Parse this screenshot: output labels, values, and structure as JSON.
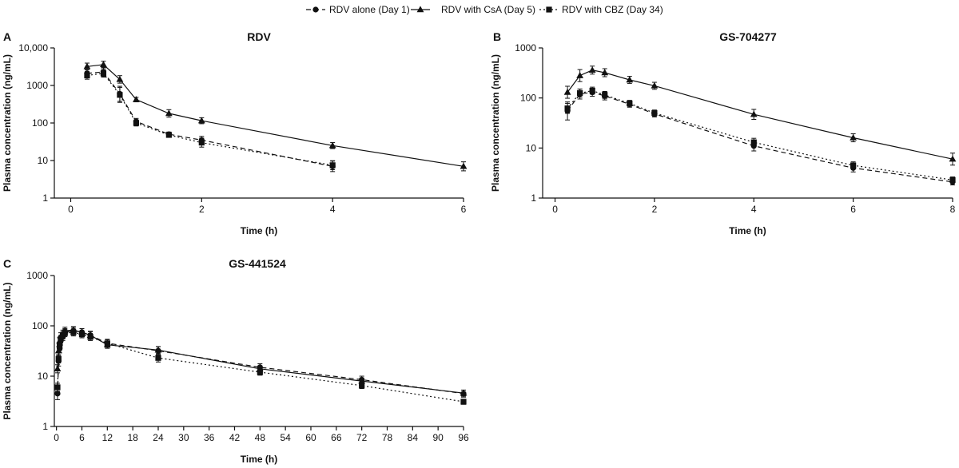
{
  "legend": [
    {
      "series": "alone",
      "label": "RDV alone (Day 1)",
      "dash": "6,4",
      "marker": "circle"
    },
    {
      "series": "csa",
      "label": "RDV with CsA (Day 5)",
      "dash": "",
      "marker": "triangle"
    },
    {
      "series": "cbz",
      "label": "RDV with CBZ (Day 34)",
      "dash": "2,3",
      "marker": "square"
    }
  ],
  "chart_data": [
    {
      "type": "line",
      "letter": "A",
      "title": "RDV",
      "xlabel": "Time (h)",
      "ylabel": "Plasma concentration (ng/mL)",
      "yscale": "log",
      "xlim": [
        -0.25,
        6
      ],
      "ylim": [
        1,
        10000
      ],
      "xticks": [
        0,
        2,
        4,
        6
      ],
      "xtick_labels": [
        "0",
        "2",
        "4",
        "6"
      ],
      "yticks": [
        1,
        10,
        100,
        1000,
        10000
      ],
      "ytick_labels": [
        "1",
        "10",
        "100",
        "1000",
        "10,000"
      ],
      "series": [
        {
          "key": "alone",
          "x": [
            0.25,
            0.5,
            0.75,
            1,
            1.5,
            2,
            4
          ],
          "y": [
            2100,
            2300,
            600,
            110,
            50,
            35,
            7
          ],
          "err": [
            0.12,
            0.12,
            0.2,
            0.08,
            0.06,
            0.1,
            0.14
          ]
        },
        {
          "key": "csa",
          "x": [
            0.25,
            0.5,
            0.75,
            1,
            1.5,
            2,
            4,
            6
          ],
          "y": [
            3200,
            3600,
            1450,
            420,
            180,
            115,
            25,
            7
          ],
          "err": [
            0.09,
            0.09,
            0.1,
            0.06,
            0.1,
            0.08,
            0.08,
            0.12
          ]
        },
        {
          "key": "cbz",
          "x": [
            0.25,
            0.5,
            0.75,
            1,
            1.5,
            2,
            4
          ],
          "y": [
            1850,
            2100,
            560,
            100,
            48,
            30,
            7.5
          ],
          "err": [
            0.1,
            0.1,
            0.2,
            0.08,
            0.06,
            0.12,
            0.12
          ]
        }
      ]
    },
    {
      "type": "line",
      "letter": "B",
      "title": "GS-704277",
      "xlabel": "Time (h)",
      "ylabel": "Plasma concentration (ng/mL)",
      "yscale": "log",
      "xlim": [
        -0.25,
        8
      ],
      "ylim": [
        1,
        1000
      ],
      "xticks": [
        0,
        2,
        4,
        6,
        8
      ],
      "xtick_labels": [
        "0",
        "2",
        "4",
        "6",
        "8"
      ],
      "yticks": [
        1,
        10,
        100,
        1000
      ],
      "ytick_labels": [
        "1",
        "10",
        "100",
        "1000"
      ],
      "series": [
        {
          "key": "alone",
          "x": [
            0.25,
            0.5,
            0.75,
            1,
            1.5,
            2,
            4,
            6,
            8
          ],
          "y": [
            55,
            120,
            130,
            110,
            75,
            48,
            11,
            4,
            2.1
          ],
          "err": [
            0.18,
            0.1,
            0.08,
            0.08,
            0.06,
            0.06,
            0.1,
            0.08,
            0.06
          ]
        },
        {
          "key": "csa",
          "x": [
            0.25,
            0.5,
            0.75,
            1,
            1.5,
            2,
            4,
            6,
            8
          ],
          "y": [
            130,
            280,
            360,
            320,
            230,
            175,
            47,
            16,
            6
          ],
          "err": [
            0.12,
            0.12,
            0.08,
            0.08,
            0.07,
            0.07,
            0.1,
            0.08,
            0.12
          ]
        },
        {
          "key": "cbz",
          "x": [
            0.25,
            0.5,
            0.75,
            1,
            1.5,
            2,
            4,
            6,
            8
          ],
          "y": [
            62,
            125,
            140,
            115,
            78,
            50,
            13,
            4.5,
            2.3
          ],
          "err": [
            0.1,
            0.08,
            0.07,
            0.07,
            0.06,
            0.06,
            0.08,
            0.07,
            0.06
          ]
        }
      ]
    },
    {
      "type": "line",
      "letter": "C",
      "title": "GS-441524",
      "xlabel": "Time (h)",
      "ylabel": "Plasma concentration (ng/mL)",
      "yscale": "log",
      "xlim": [
        -0.5,
        96
      ],
      "ylim": [
        1,
        1000
      ],
      "xticks": [
        0,
        6,
        12,
        18,
        24,
        30,
        36,
        42,
        48,
        54,
        60,
        66,
        72,
        78,
        84,
        90,
        96
      ],
      "xtick_labels": [
        "0",
        "6",
        "12",
        "18",
        "24",
        "30",
        "36",
        "42",
        "48",
        "54",
        "60",
        "66",
        "72",
        "78",
        "84",
        "90",
        "96"
      ],
      "yticks": [
        1,
        10,
        100,
        1000
      ],
      "ytick_labels": [
        "1",
        "10",
        "100",
        "1000"
      ],
      "series": [
        {
          "key": "alone",
          "x": [
            0.25,
            0.5,
            0.75,
            1,
            1.5,
            2,
            4,
            6,
            8,
            12,
            24,
            48,
            72,
            96
          ],
          "y": [
            4.5,
            20,
            35,
            50,
            60,
            75,
            80,
            75,
            65,
            45,
            32,
            15,
            8.5,
            4.5
          ],
          "err": [
            0.12,
            0.1,
            0.08,
            0.08,
            0.07,
            0.07,
            0.07,
            0.07,
            0.08,
            0.07,
            0.08,
            0.07,
            0.07,
            0.07
          ]
        },
        {
          "key": "csa",
          "x": [
            0.25,
            0.5,
            0.75,
            1,
            1.5,
            2,
            4,
            6,
            8,
            12,
            24,
            48,
            72,
            96
          ],
          "y": [
            14,
            32,
            50,
            62,
            70,
            80,
            82,
            75,
            65,
            42,
            33,
            14,
            8,
            4.6
          ],
          "err": [
            0.08,
            0.08,
            0.07,
            0.07,
            0.07,
            0.07,
            0.07,
            0.07,
            0.07,
            0.07,
            0.07,
            0.06,
            0.06,
            0.06
          ]
        },
        {
          "key": "cbz",
          "x": [
            0.25,
            0.5,
            0.75,
            1,
            1.5,
            2,
            4,
            6,
            8,
            12,
            24,
            48,
            72,
            96
          ],
          "y": [
            6,
            22,
            40,
            55,
            65,
            72,
            74,
            68,
            60,
            45,
            23,
            12,
            6.5,
            3.1
          ],
          "err": [
            0.08,
            0.08,
            0.07,
            0.07,
            0.07,
            0.07,
            0.07,
            0.07,
            0.07,
            0.08,
            0.08,
            0.06,
            0.06,
            0.05
          ]
        }
      ]
    }
  ]
}
